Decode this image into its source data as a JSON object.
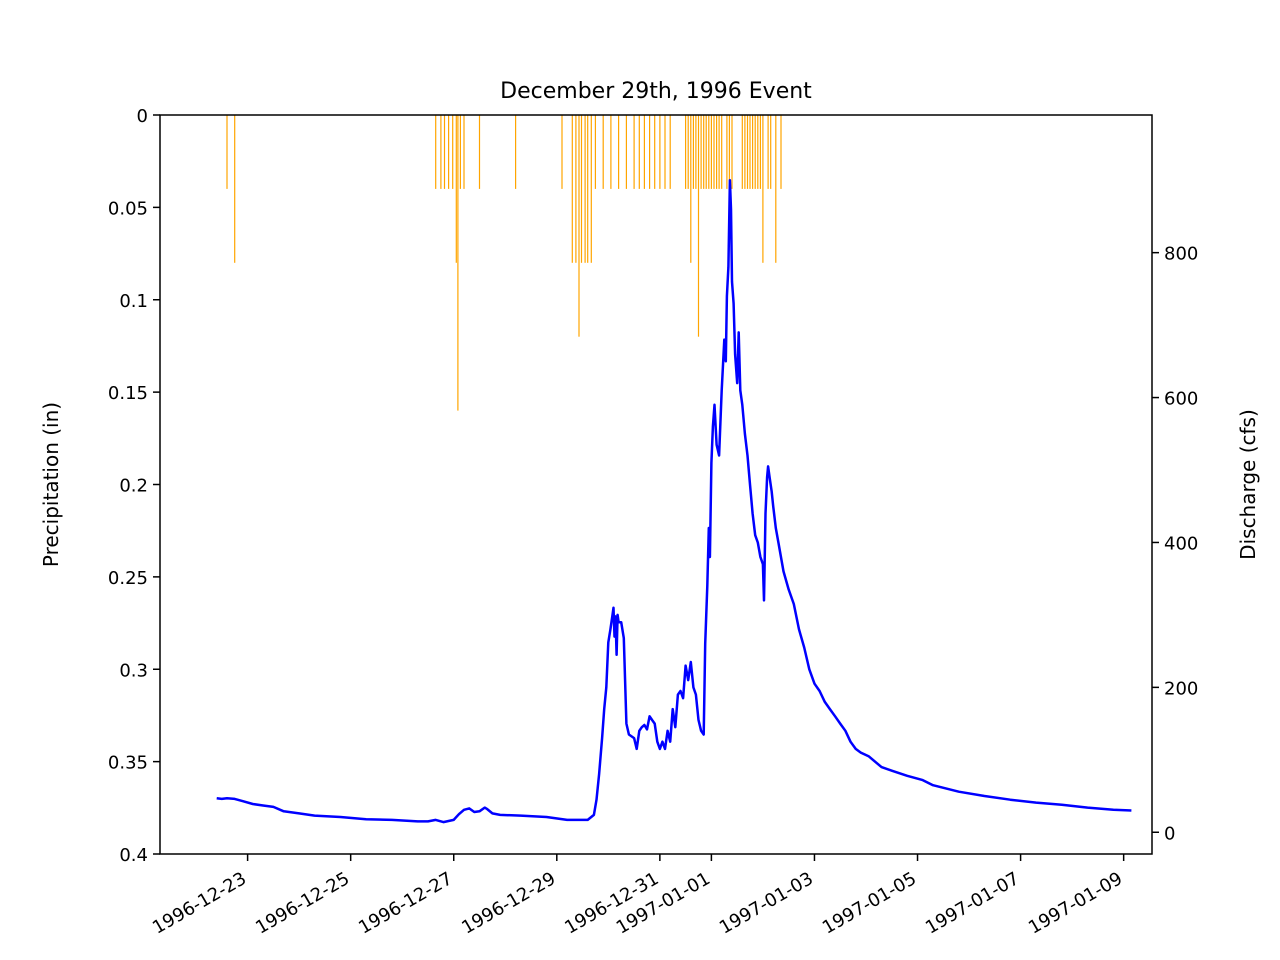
{
  "chart_data": {
    "type": "hyetograph_hydrograph",
    "title": "December 29th, 1996 Event",
    "precipitation": {
      "axis_label": "Precipitation (in)",
      "axis_side": "left",
      "inverted": true,
      "ylim": [
        0,
        0.4
      ],
      "ticks": [
        0,
        0.05,
        0.1,
        0.15,
        0.2,
        0.25,
        0.3,
        0.35,
        0.4
      ],
      "tick_labels": [
        "0",
        "0.05",
        "0.1",
        "0.15",
        "0.2",
        "0.25",
        "0.3",
        "0.35",
        "0.4"
      ],
      "color": "#FFA500",
      "series_name": "Precipitation",
      "unit": "in",
      "x_unit": "days since 1996-12-21 00:00",
      "bars": [
        [
          1.3,
          0.04
        ],
        [
          1.45,
          0.08
        ],
        [
          5.35,
          0.04
        ],
        [
          5.45,
          0.04
        ],
        [
          5.52,
          0.04
        ],
        [
          5.6,
          0.04
        ],
        [
          5.68,
          0.04
        ],
        [
          5.75,
          0.08
        ],
        [
          5.78,
          0.16
        ],
        [
          5.83,
          0.04
        ],
        [
          5.9,
          0.04
        ],
        [
          6.2,
          0.04
        ],
        [
          6.9,
          0.04
        ],
        [
          7.8,
          0.04
        ],
        [
          8.0,
          0.08
        ],
        [
          8.07,
          0.08
        ],
        [
          8.13,
          0.12
        ],
        [
          8.18,
          0.08
        ],
        [
          8.25,
          0.08
        ],
        [
          8.3,
          0.08
        ],
        [
          8.37,
          0.08
        ],
        [
          8.45,
          0.04
        ],
        [
          8.6,
          0.04
        ],
        [
          8.75,
          0.04
        ],
        [
          8.9,
          0.04
        ],
        [
          9.05,
          0.04
        ],
        [
          9.2,
          0.04
        ],
        [
          9.3,
          0.04
        ],
        [
          9.4,
          0.04
        ],
        [
          9.5,
          0.04
        ],
        [
          9.6,
          0.04
        ],
        [
          9.7,
          0.04
        ],
        [
          9.8,
          0.04
        ],
        [
          9.9,
          0.04
        ],
        [
          10.2,
          0.04
        ],
        [
          10.25,
          0.04
        ],
        [
          10.3,
          0.08
        ],
        [
          10.35,
          0.04
        ],
        [
          10.4,
          0.04
        ],
        [
          10.45,
          0.12
        ],
        [
          10.5,
          0.04
        ],
        [
          10.55,
          0.04
        ],
        [
          10.6,
          0.04
        ],
        [
          10.65,
          0.04
        ],
        [
          10.7,
          0.04
        ],
        [
          10.75,
          0.04
        ],
        [
          10.8,
          0.04
        ],
        [
          10.85,
          0.04
        ],
        [
          10.9,
          0.04
        ],
        [
          11.0,
          0.04
        ],
        [
          11.05,
          0.04
        ],
        [
          11.1,
          0.04
        ],
        [
          11.3,
          0.04
        ],
        [
          11.35,
          0.04
        ],
        [
          11.4,
          0.04
        ],
        [
          11.45,
          0.04
        ],
        [
          11.5,
          0.04
        ],
        [
          11.55,
          0.04
        ],
        [
          11.6,
          0.04
        ],
        [
          11.65,
          0.04
        ],
        [
          11.7,
          0.08
        ],
        [
          11.8,
          0.04
        ],
        [
          11.85,
          0.04
        ],
        [
          11.95,
          0.08
        ],
        [
          12.05,
          0.04
        ]
      ]
    },
    "discharge": {
      "axis_label": "Discharge (cfs)",
      "axis_side": "right",
      "ylim": [
        -30,
        990
      ],
      "ticks": [
        0,
        200,
        400,
        600,
        800
      ],
      "tick_labels": [
        "0",
        "200",
        "400",
        "600",
        "800"
      ],
      "color": "#0000FF",
      "series_name": "Discharge",
      "unit": "cfs",
      "x_unit": "days since 1996-12-21 00:00",
      "points": [
        [
          1.1,
          47
        ],
        [
          1.2,
          46
        ],
        [
          1.3,
          47
        ],
        [
          1.45,
          46
        ],
        [
          1.6,
          43
        ],
        [
          1.8,
          39
        ],
        [
          2.0,
          37
        ],
        [
          2.2,
          35
        ],
        [
          2.4,
          29
        ],
        [
          2.7,
          26
        ],
        [
          3.0,
          23
        ],
        [
          3.5,
          21
        ],
        [
          4.0,
          18
        ],
        [
          4.5,
          17
        ],
        [
          5.0,
          15
        ],
        [
          5.2,
          15
        ],
        [
          5.35,
          17
        ],
        [
          5.5,
          14
        ],
        [
          5.7,
          17
        ],
        [
          5.8,
          25
        ],
        [
          5.9,
          31
        ],
        [
          6.0,
          33
        ],
        [
          6.1,
          28
        ],
        [
          6.2,
          29
        ],
        [
          6.3,
          34
        ],
        [
          6.35,
          32
        ],
        [
          6.45,
          26
        ],
        [
          6.6,
          24
        ],
        [
          7.0,
          23
        ],
        [
          7.5,
          21
        ],
        [
          7.9,
          17
        ],
        [
          8.1,
          17
        ],
        [
          8.3,
          17
        ],
        [
          8.42,
          24
        ],
        [
          8.47,
          45
        ],
        [
          8.52,
          80
        ],
        [
          8.58,
          130
        ],
        [
          8.62,
          170
        ],
        [
          8.66,
          200
        ],
        [
          8.7,
          262
        ],
        [
          8.74,
          280
        ],
        [
          8.78,
          300
        ],
        [
          8.8,
          310
        ],
        [
          8.82,
          270
        ],
        [
          8.84,
          298
        ],
        [
          8.86,
          245
        ],
        [
          8.88,
          300
        ],
        [
          8.9,
          290
        ],
        [
          8.95,
          290
        ],
        [
          9.0,
          268
        ],
        [
          9.05,
          150
        ],
        [
          9.1,
          135
        ],
        [
          9.2,
          130
        ],
        [
          9.25,
          115
        ],
        [
          9.3,
          140
        ],
        [
          9.35,
          145
        ],
        [
          9.4,
          148
        ],
        [
          9.45,
          142
        ],
        [
          9.5,
          160
        ],
        [
          9.55,
          155
        ],
        [
          9.6,
          150
        ],
        [
          9.65,
          125
        ],
        [
          9.7,
          115
        ],
        [
          9.75,
          125
        ],
        [
          9.8,
          115
        ],
        [
          9.85,
          140
        ],
        [
          9.9,
          125
        ],
        [
          9.95,
          170
        ],
        [
          10.0,
          145
        ],
        [
          10.05,
          190
        ],
        [
          10.1,
          195
        ],
        [
          10.15,
          185
        ],
        [
          10.2,
          230
        ],
        [
          10.25,
          210
        ],
        [
          10.3,
          235
        ],
        [
          10.35,
          200
        ],
        [
          10.4,
          190
        ],
        [
          10.45,
          155
        ],
        [
          10.5,
          140
        ],
        [
          10.55,
          135
        ],
        [
          10.58,
          260
        ],
        [
          10.62,
          340
        ],
        [
          10.65,
          420
        ],
        [
          10.67,
          380
        ],
        [
          10.7,
          510
        ],
        [
          10.73,
          560
        ],
        [
          10.76,
          590
        ],
        [
          10.8,
          535
        ],
        [
          10.85,
          520
        ],
        [
          10.9,
          610
        ],
        [
          10.95,
          680
        ],
        [
          10.98,
          650
        ],
        [
          11.0,
          740
        ],
        [
          11.03,
          780
        ],
        [
          11.06,
          900
        ],
        [
          11.08,
          860
        ],
        [
          11.1,
          760
        ],
        [
          11.13,
          730
        ],
        [
          11.16,
          660
        ],
        [
          11.2,
          620
        ],
        [
          11.23,
          690
        ],
        [
          11.26,
          610
        ],
        [
          11.3,
          590
        ],
        [
          11.35,
          550
        ],
        [
          11.4,
          520
        ],
        [
          11.45,
          480
        ],
        [
          11.5,
          440
        ],
        [
          11.55,
          410
        ],
        [
          11.6,
          400
        ],
        [
          11.65,
          380
        ],
        [
          11.7,
          370
        ],
        [
          11.72,
          320
        ],
        [
          11.75,
          440
        ],
        [
          11.78,
          490
        ],
        [
          11.8,
          505
        ],
        [
          11.83,
          490
        ],
        [
          11.87,
          470
        ],
        [
          11.9,
          450
        ],
        [
          11.95,
          420
        ],
        [
          12.0,
          400
        ],
        [
          12.1,
          360
        ],
        [
          12.2,
          335
        ],
        [
          12.3,
          315
        ],
        [
          12.4,
          280
        ],
        [
          12.5,
          255
        ],
        [
          12.6,
          225
        ],
        [
          12.7,
          205
        ],
        [
          12.8,
          195
        ],
        [
          12.9,
          180
        ],
        [
          13.0,
          170
        ],
        [
          13.1,
          160
        ],
        [
          13.2,
          150
        ],
        [
          13.3,
          140
        ],
        [
          13.4,
          125
        ],
        [
          13.5,
          115
        ],
        [
          13.6,
          110
        ],
        [
          13.75,
          105
        ],
        [
          14.0,
          90
        ],
        [
          14.2,
          85
        ],
        [
          14.5,
          78
        ],
        [
          14.8,
          72
        ],
        [
          15.0,
          65
        ],
        [
          15.5,
          56
        ],
        [
          16.0,
          50
        ],
        [
          16.5,
          45
        ],
        [
          17.0,
          41
        ],
        [
          17.5,
          38
        ],
        [
          18.0,
          34
        ],
        [
          18.5,
          31
        ],
        [
          18.85,
          30
        ]
      ]
    },
    "x_axis": {
      "type": "date",
      "unit": "days since 1996-12-21 00:00",
      "xlim": [
        0.0,
        19.25
      ],
      "tick_values": [
        1.7,
        3.7,
        5.7,
        7.7,
        9.7,
        10.7,
        12.7,
        14.7,
        16.7,
        18.7
      ],
      "tick_labels": [
        "1996-12-23",
        "1996-12-25",
        "1996-12-27",
        "1996-12-29",
        "1996-12-31",
        "1997-01-01",
        "1997-01-03",
        "1997-01-05",
        "1997-01-07",
        "1997-01-09"
      ],
      "label_rotation": "30 degrees"
    }
  }
}
